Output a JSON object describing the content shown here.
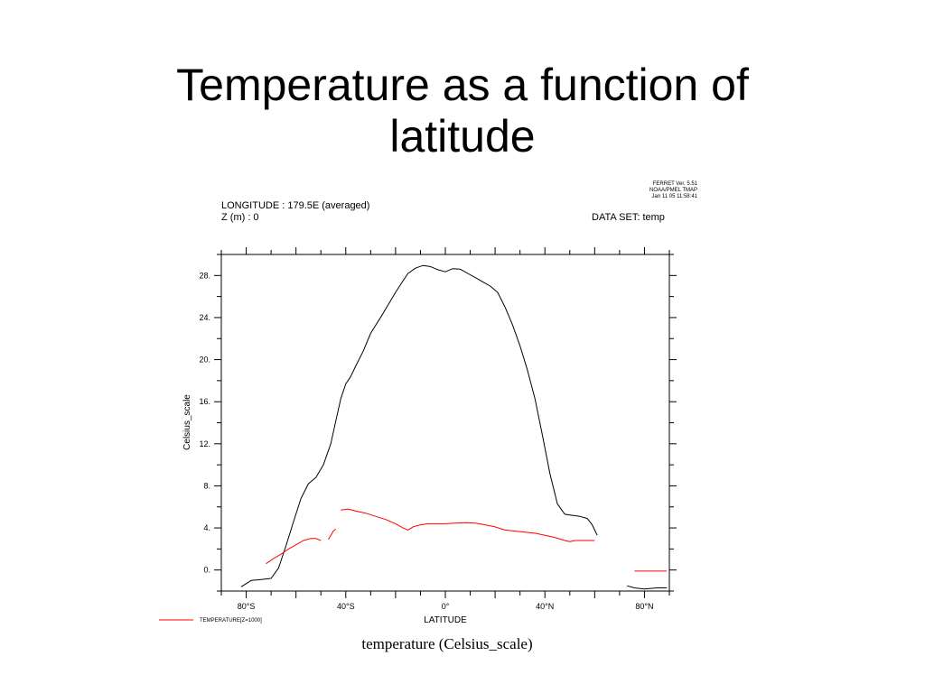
{
  "slide": {
    "title_line1": "Temperature as a function of",
    "title_line2": "latitude"
  },
  "ferret_stamp": {
    "line1": "FERRET Ver. 5.51",
    "line2": "NOAA/PMEL TMAP",
    "line3": "Jan 11 05 11:58:41"
  },
  "plot_header": {
    "longitude": "LONGITUDE : 179.5E (averaged)",
    "depth": "Z (m) : 0",
    "dataset": "DATA SET: temp"
  },
  "bottom_caption": "temperature (Celsius_scale)",
  "chart_data": {
    "type": "line",
    "xlabel": "LATITUDE",
    "ylabel": "Celsius_scale",
    "xlim": [
      -90,
      90
    ],
    "ylim": [
      -2,
      30
    ],
    "x_ticks": [
      -80,
      -40,
      0,
      40,
      80
    ],
    "x_tick_labels": [
      "80°S",
      "40°S",
      "0°",
      "40°N",
      "80°N"
    ],
    "y_ticks": [
      0,
      4,
      8,
      12,
      16,
      20,
      24,
      28
    ],
    "y_tick_labels": [
      "0.",
      "4.",
      "8.",
      "12.",
      "16.",
      "20.",
      "24.",
      "28."
    ],
    "series": [
      {
        "color": "#000000",
        "segments": [
          [
            [
              -82,
              -1.6
            ],
            [
              -78,
              -1.0
            ],
            [
              -74,
              -0.9
            ],
            [
              -70,
              -0.8
            ],
            [
              -67,
              0.2
            ],
            [
              -64,
              2.3
            ],
            [
              -61,
              4.6
            ],
            [
              -58,
              6.8
            ],
            [
              -55,
              8.2
            ],
            [
              -52,
              8.8
            ],
            [
              -49,
              10.0
            ],
            [
              -46,
              12.0
            ],
            [
              -44,
              14.2
            ],
            [
              -42,
              16.3
            ],
            [
              -40,
              17.7
            ],
            [
              -38,
              18.4
            ],
            [
              -36,
              19.4
            ],
            [
              -33,
              20.8
            ],
            [
              -30,
              22.5
            ],
            [
              -25,
              24.4
            ],
            [
              -20,
              26.4
            ],
            [
              -17,
              27.5
            ],
            [
              -15,
              28.2
            ],
            [
              -12,
              28.7
            ],
            [
              -9,
              28.95
            ],
            [
              -6,
              28.85
            ],
            [
              -3,
              28.55
            ],
            [
              0,
              28.35
            ],
            [
              3,
              28.65
            ],
            [
              6,
              28.6
            ],
            [
              9,
              28.2
            ],
            [
              12,
              27.8
            ],
            [
              15,
              27.4
            ],
            [
              18,
              27.0
            ],
            [
              21,
              26.4
            ],
            [
              24,
              25.0
            ],
            [
              27,
              23.3
            ],
            [
              30,
              21.3
            ],
            [
              33,
              19.0
            ],
            [
              36,
              16.3
            ],
            [
              39,
              12.8
            ],
            [
              42,
              9.2
            ],
            [
              45,
              6.3
            ],
            [
              48,
              5.3
            ],
            [
              51,
              5.2
            ],
            [
              54,
              5.1
            ],
            [
              57,
              4.9
            ],
            [
              59,
              4.3
            ],
            [
              61,
              3.3
            ]
          ],
          [
            [
              73,
              -1.5
            ],
            [
              76,
              -1.7
            ],
            [
              80,
              -1.8
            ],
            [
              85,
              -1.7
            ],
            [
              89,
              -1.7
            ]
          ]
        ]
      },
      {
        "name": "TEMPERATURE[Z=1000]",
        "color": "#ff0000",
        "segments": [
          [
            [
              -72,
              0.6
            ],
            [
              -69,
              1.1
            ],
            [
              -66,
              1.5
            ],
            [
              -63,
              2.0
            ],
            [
              -60,
              2.4
            ],
            [
              -57,
              2.8
            ],
            [
              -54,
              3.0
            ],
            [
              -52,
              3.0
            ],
            [
              -50,
              2.8
            ]
          ],
          [
            [
              -47,
              2.9
            ],
            [
              -45,
              3.7
            ],
            [
              -44,
              3.9
            ]
          ],
          [
            [
              -42,
              5.7
            ],
            [
              -39,
              5.8
            ],
            [
              -36,
              5.6
            ],
            [
              -32,
              5.4
            ],
            [
              -28,
              5.1
            ],
            [
              -24,
              4.8
            ],
            [
              -20,
              4.4
            ],
            [
              -17,
              4.0
            ],
            [
              -15,
              3.8
            ],
            [
              -13,
              4.1
            ],
            [
              -10,
              4.3
            ],
            [
              -7,
              4.4
            ],
            [
              -3,
              4.4
            ],
            [
              0,
              4.4
            ],
            [
              4,
              4.45
            ],
            [
              8,
              4.5
            ],
            [
              12,
              4.45
            ],
            [
              16,
              4.3
            ],
            [
              20,
              4.1
            ],
            [
              24,
              3.8
            ],
            [
              28,
              3.7
            ],
            [
              32,
              3.6
            ],
            [
              36,
              3.5
            ],
            [
              40,
              3.3
            ],
            [
              44,
              3.1
            ],
            [
              48,
              2.8
            ],
            [
              50,
              2.7
            ],
            [
              52,
              2.8
            ],
            [
              56,
              2.8
            ],
            [
              60,
              2.8
            ]
          ],
          [
            [
              76,
              -0.1
            ],
            [
              89,
              -0.1
            ]
          ]
        ]
      }
    ],
    "legend_position": "bottom-left"
  }
}
